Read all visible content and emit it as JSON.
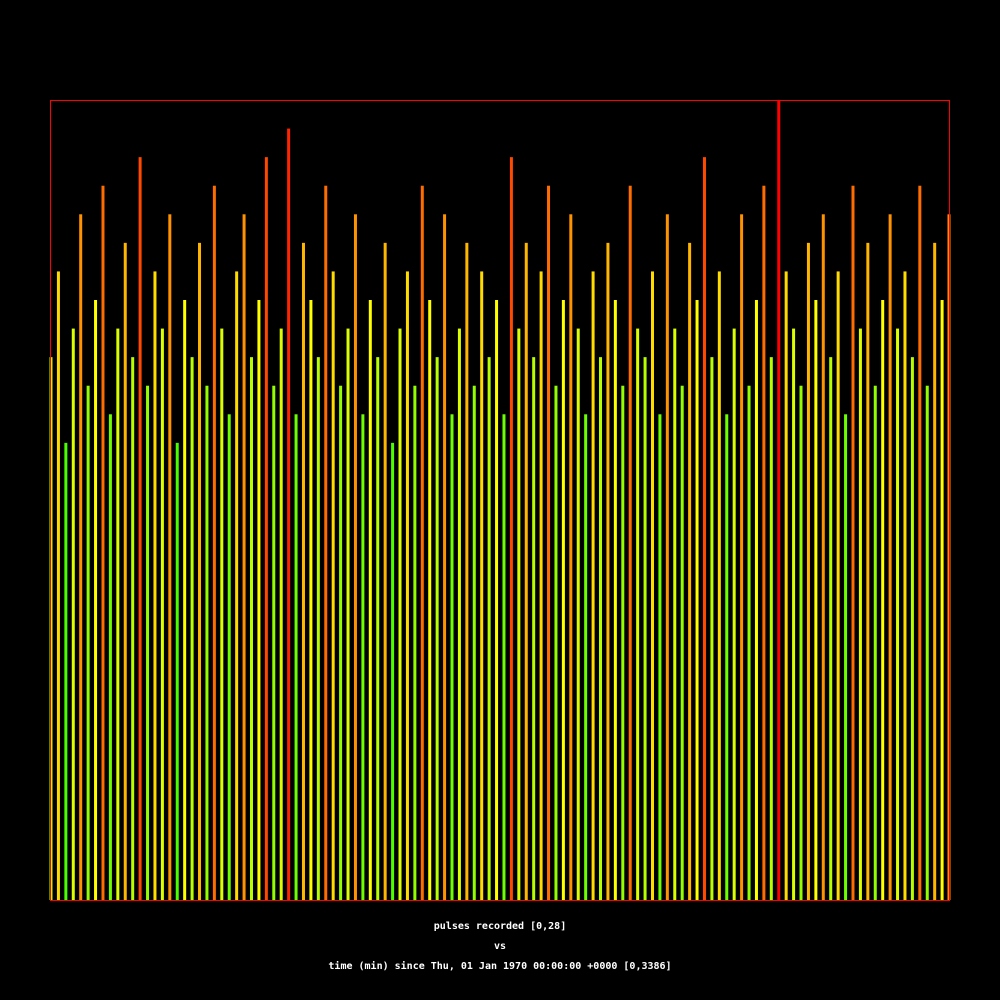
{
  "chart_data": {
    "type": "bar",
    "y_label": "pulses recorded [0,28]",
    "joiner": "vs",
    "x_label": "time (min) since Thu, 01 Jan 1970 00:00:00 +0000 [0,3386]",
    "xlim": [
      0,
      3386
    ],
    "ylim": [
      0,
      28
    ],
    "frame_color": "#ff0000",
    "colormap": [
      "#0000ff",
      "#00ffff",
      "#00ff00",
      "#ffff00",
      "#ff0000"
    ],
    "x": [
      0,
      28,
      56,
      84,
      112,
      140,
      168,
      196,
      224,
      252,
      280,
      308,
      336,
      364,
      392,
      420,
      448,
      476,
      504,
      532,
      560,
      588,
      616,
      644,
      672,
      700,
      728,
      756,
      784,
      812,
      840,
      868,
      896,
      924,
      952,
      980,
      1008,
      1036,
      1064,
      1092,
      1120,
      1148,
      1176,
      1204,
      1232,
      1260,
      1288,
      1316,
      1344,
      1372,
      1400,
      1428,
      1456,
      1484,
      1512,
      1540,
      1568,
      1596,
      1624,
      1652,
      1680,
      1708,
      1736,
      1764,
      1792,
      1820,
      1848,
      1876,
      1904,
      1932,
      1960,
      1988,
      2016,
      2044,
      2072,
      2100,
      2128,
      2156,
      2184,
      2212,
      2240,
      2268,
      2296,
      2324,
      2352,
      2380,
      2408,
      2436,
      2464,
      2492,
      2520,
      2548,
      2576,
      2604,
      2632,
      2660,
      2688,
      2716,
      2744,
      2772,
      2800,
      2828,
      2856,
      2884,
      2912,
      2940,
      2968,
      2996,
      3024,
      3052,
      3080,
      3108,
      3136,
      3164,
      3192,
      3220,
      3248,
      3276,
      3304,
      3332,
      3360,
      3386
    ],
    "values": [
      19,
      22,
      16,
      20,
      24,
      18,
      21,
      25,
      17,
      20,
      23,
      19,
      26,
      18,
      22,
      20,
      24,
      16,
      21,
      19,
      23,
      18,
      25,
      20,
      17,
      22,
      24,
      19,
      21,
      26,
      18,
      20,
      27,
      17,
      23,
      21,
      19,
      25,
      22,
      18,
      20,
      24,
      17,
      21,
      19,
      23,
      16,
      20,
      22,
      18,
      25,
      21,
      19,
      24,
      17,
      20,
      23,
      18,
      22,
      19,
      21,
      17,
      26,
      20,
      23,
      19,
      22,
      25,
      18,
      21,
      24,
      20,
      17,
      22,
      19,
      23,
      21,
      18,
      25,
      20,
      19,
      22,
      17,
      24,
      20,
      18,
      23,
      21,
      26,
      19,
      22,
      17,
      20,
      24,
      18,
      21,
      25,
      19,
      28,
      22,
      20,
      18,
      23,
      21,
      24,
      19,
      22,
      17,
      25,
      20,
      23,
      18,
      21,
      24,
      20,
      22,
      19,
      25,
      18,
      23,
      21,
      24
    ]
  }
}
